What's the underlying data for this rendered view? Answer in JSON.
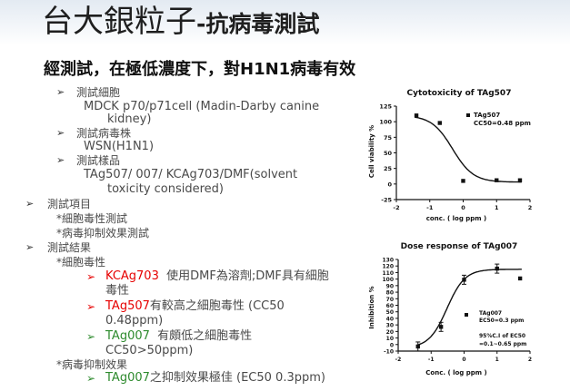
{
  "title": {
    "main": "台大銀粒子",
    "suffix": "-抗病毒測試"
  },
  "subtitle": "經測試，在極低濃度下，對H1N1病毒有效",
  "list": {
    "cells_head": "測試細胞",
    "cells_text1": "MDCK p70/p71cell (Madin-Darby canine",
    "cells_text2": "kidney)",
    "virus_head": "測試病毒株",
    "virus_text": "WSN(H1N1)",
    "sample_head": "測試樣品",
    "sample_text1": "TAg507/ 007/ KCAg703/DMF(solvent",
    "sample_text2": "toxicity considered)",
    "items_head": "測試項目",
    "items_1": "*細胞毒性測試",
    "items_2": "*病毒抑制效果測試",
    "results_head": "測試結果",
    "cyto_head": "*細胞毒性",
    "r1_name": "KCAg703",
    "r1_text1": "使用DMF為溶劑;DMF具有細胞",
    "r1_text2": "毒性",
    "r2_name": "TAg507",
    "r2_text1": "有較高之細胞毒性  (CC50",
    "r2_text2": "0.48ppm)",
    "r3_name": "TAg007",
    "r3_text1": "有頗低之細胞毒性",
    "r3_text2": "CC50>50ppm)",
    "inhib_head": "*病毒抑制效果",
    "r4_name": "TAg007",
    "r4_text": "之抑制效果極佳 (EC50 0.3ppm)"
  },
  "chart_data": [
    {
      "type": "scatter",
      "title": "Cytotoxicity of TAg507",
      "xlabel": "conc. ( log ppm )",
      "ylabel": "Cell viability %",
      "xlim": [
        -2,
        2
      ],
      "ylim": [
        -25,
        125
      ],
      "xticks": [
        -2,
        -1,
        0,
        1,
        2
      ],
      "yticks": [
        -25,
        0,
        25,
        50,
        75,
        100,
        125
      ],
      "points": [
        {
          "x": -1.4,
          "y": 110
        },
        {
          "x": -0.7,
          "y": 98
        },
        {
          "x": 0.0,
          "y": 5
        },
        {
          "x": 1.0,
          "y": 6
        },
        {
          "x": 1.7,
          "y": 6
        }
      ],
      "legend": {
        "series": "TAg507",
        "note": "CC50=0.48 ppm"
      }
    },
    {
      "type": "scatter",
      "title": "Dose response of TAg007",
      "xlabel": "Conc. ( log ppm )",
      "ylabel": "Inhibition %",
      "xlim": [
        -2,
        2
      ],
      "ylim": [
        -10,
        130
      ],
      "xticks": [
        -2,
        -1,
        0,
        1,
        2
      ],
      "yticks": [
        -10,
        0,
        10,
        20,
        30,
        40,
        50,
        60,
        70,
        80,
        90,
        100,
        110,
        120,
        130
      ],
      "points": [
        {
          "x": -1.4,
          "y": -3
        },
        {
          "x": -0.7,
          "y": 27
        },
        {
          "x": 0.0,
          "y": 99
        },
        {
          "x": 1.0,
          "y": 116
        },
        {
          "x": 1.7,
          "y": 101
        }
      ],
      "legend": {
        "series": "TAg007",
        "note": "EC50=0.3 ppm",
        "ci1": "95%C.I of EC50",
        "ci2": "=0.1~0.65 ppm"
      }
    }
  ]
}
